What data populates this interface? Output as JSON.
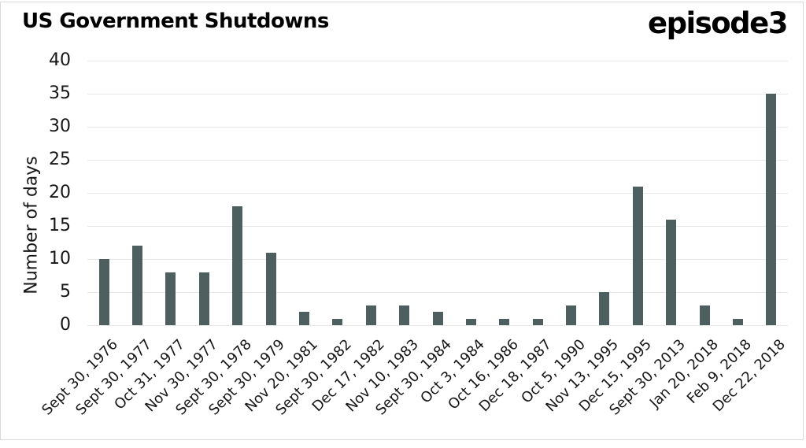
{
  "header": {
    "brand": "episode3"
  },
  "chart_data": {
    "type": "bar",
    "title": "US Government Shutdowns",
    "xlabel": "",
    "ylabel": "Number of days",
    "ylim": [
      0,
      40
    ],
    "yticks": [
      0,
      5,
      10,
      15,
      20,
      25,
      30,
      35,
      40
    ],
    "grid": true,
    "legend": false,
    "categories": [
      "Sept 30, 1976",
      "Sept 30, 1977",
      "Oct 31, 1977",
      "Nov 30, 1977",
      "Sept 30, 1978",
      "Sept 30, 1979",
      "Nov 20, 1981",
      "Sept 30, 1982",
      "Dec 17, 1982",
      "Nov 10, 1983",
      "Sept 30, 1984",
      "Oct 3, 1984",
      "Oct 16, 1986",
      "Dec 18, 1987",
      "Oct 5, 1990",
      "Nov 13, 1995",
      "Dec 15, 1995",
      "Sept 30, 2013",
      "Jan 20, 2018",
      "Feb 9, 2018",
      "Dec 22, 2018"
    ],
    "values": [
      10,
      12,
      8,
      8,
      18,
      11,
      2,
      1,
      3,
      3,
      2,
      1,
      1,
      1,
      3,
      5,
      21,
      16,
      3,
      1,
      35
    ]
  },
  "colors": {
    "bar": "#4d5f5e",
    "grid": "#e8e8e8",
    "text": "#161616",
    "title": "#000000",
    "frame_border": "#d9d9d9",
    "background": "#ffffff"
  }
}
